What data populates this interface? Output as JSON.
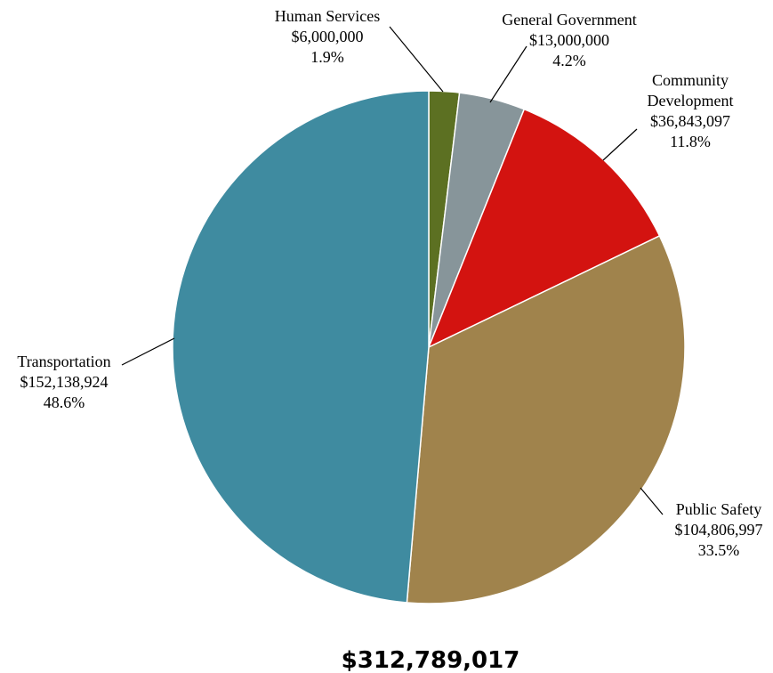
{
  "chart_data": {
    "type": "pie",
    "total_label": "$312,789,017",
    "slices": [
      {
        "name": "Human Services",
        "label_lines": [
          "Human Services"
        ],
        "amount": "$6,000,000",
        "percent": "1.9%",
        "value": 6000000,
        "color": "#5c7022"
      },
      {
        "name": "General Government",
        "label_lines": [
          "General Government"
        ],
        "amount": "$13,000,000",
        "percent": "4.2%",
        "value": 13000000,
        "color": "#87959a"
      },
      {
        "name": "Community Development",
        "label_lines": [
          "Community",
          "Development"
        ],
        "amount": "$36,843,097",
        "percent": "11.8%",
        "value": 36843097,
        "color": "#d31310"
      },
      {
        "name": "Public Safety",
        "label_lines": [
          "Public Safety"
        ],
        "amount": "$104,806,997",
        "percent": "33.5%",
        "value": 104806997,
        "color": "#a0834c"
      },
      {
        "name": "Transportation",
        "label_lines": [
          "Transportation"
        ],
        "amount": "$152,138,924",
        "percent": "48.6%",
        "value": 152138924,
        "color": "#3f8ba0"
      }
    ]
  }
}
